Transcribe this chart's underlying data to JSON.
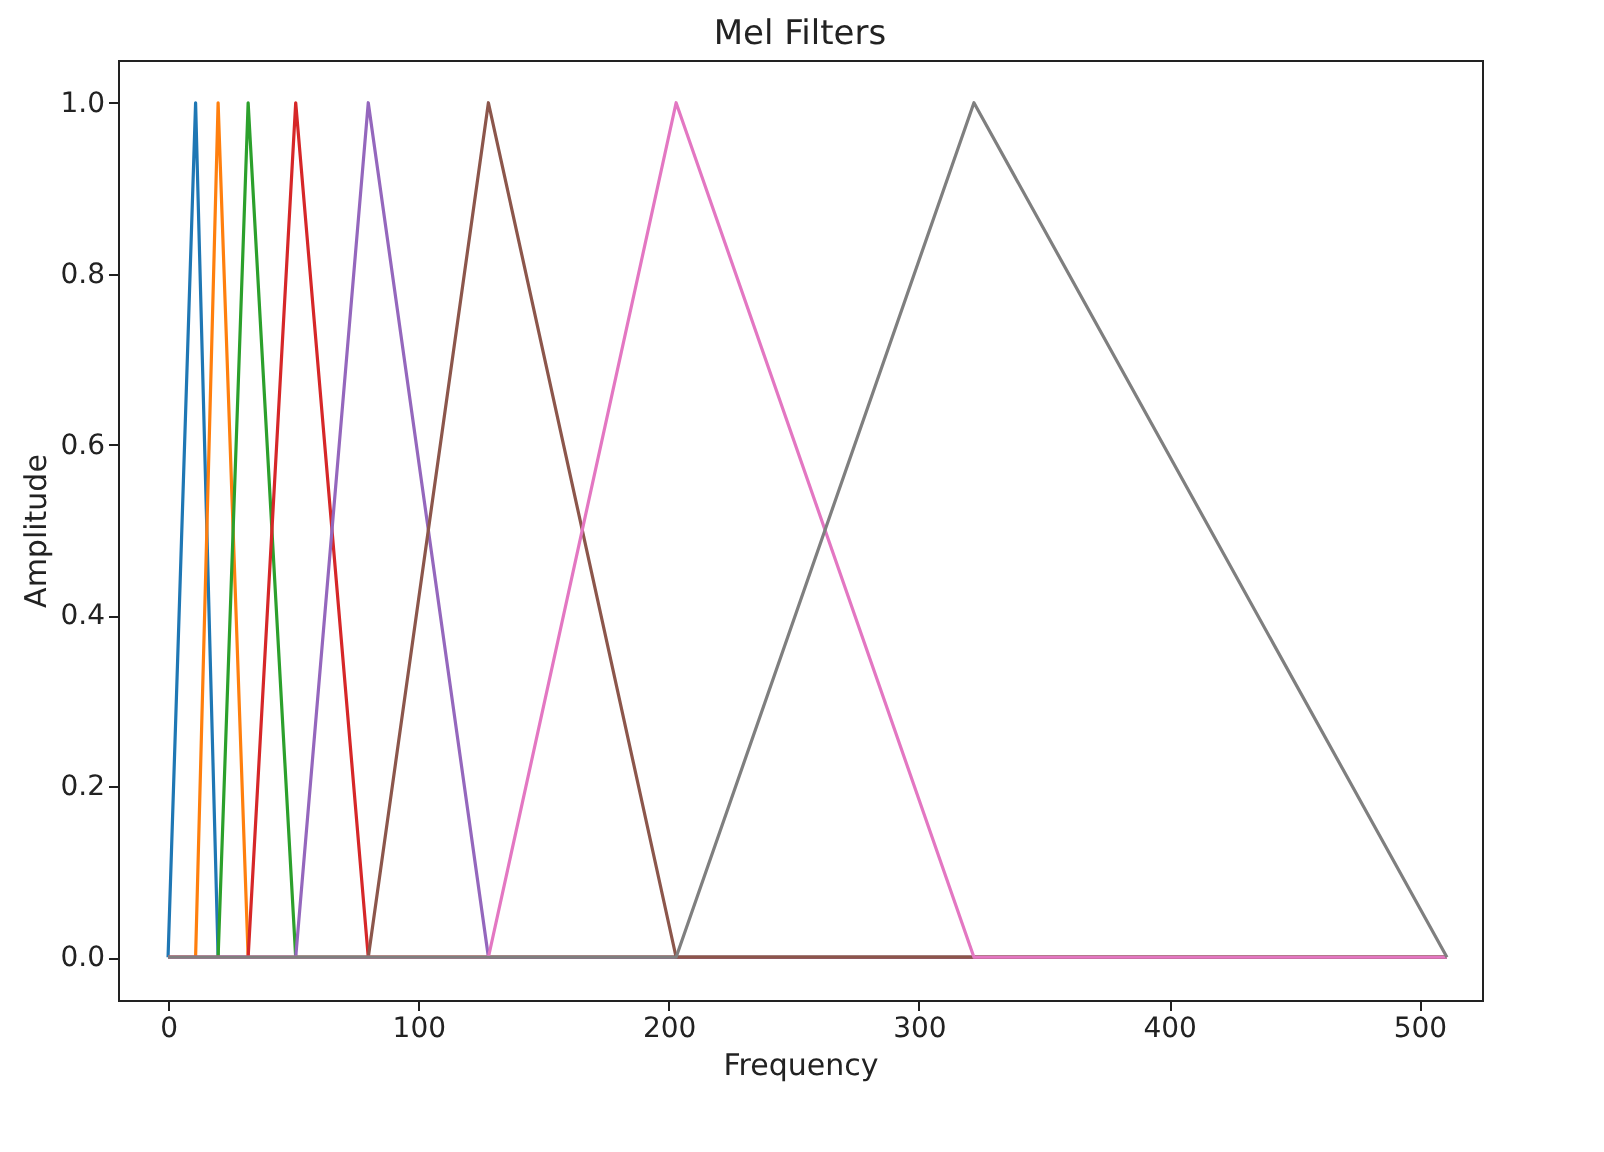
{
  "chart_data": {
    "type": "line",
    "title": "Mel Filters",
    "xlabel": "Frequency",
    "ylabel": "Amplitude",
    "xlim": [
      -20,
      525
    ],
    "xticks": [
      0,
      100,
      200,
      300,
      400,
      500
    ],
    "ylim": [
      -0.05,
      1.05
    ],
    "yticks": [
      {
        "value": 0,
        "label": "0.0"
      },
      0.2,
      0.4,
      0.6,
      0.8,
      {
        "value": 1,
        "label": "1.0"
      }
    ],
    "grid": false,
    "legend": false,
    "series": [
      {
        "color": "#1f77b4",
        "x": [
          0,
          0,
          11,
          20,
          511
        ],
        "values": [
          0,
          0,
          1,
          0,
          0
        ]
      },
      {
        "color": "#ff7f0e",
        "x": [
          0,
          11,
          20,
          32,
          511
        ],
        "values": [
          0,
          0,
          1,
          0,
          0
        ]
      },
      {
        "color": "#2ca02c",
        "x": [
          0,
          20,
          32,
          51,
          511
        ],
        "values": [
          0,
          0,
          1,
          0,
          0
        ]
      },
      {
        "color": "#d62728",
        "x": [
          0,
          32,
          51,
          80,
          511
        ],
        "values": [
          0,
          0,
          1,
          0,
          0
        ]
      },
      {
        "color": "#9467bd",
        "x": [
          0,
          51,
          80,
          128,
          511
        ],
        "values": [
          0,
          0,
          1,
          0,
          0
        ]
      },
      {
        "color": "#8c564b",
        "x": [
          0,
          80,
          128,
          203,
          511
        ],
        "values": [
          0,
          0,
          1,
          0,
          0
        ]
      },
      {
        "color": "#e377c2",
        "x": [
          0,
          128,
          203,
          322,
          511
        ],
        "values": [
          0,
          0,
          1,
          0,
          0
        ]
      },
      {
        "color": "#7f7f7f",
        "x": [
          0,
          203,
          322,
          511,
          511
        ],
        "values": [
          0,
          0,
          1,
          0,
          0
        ]
      }
    ]
  }
}
